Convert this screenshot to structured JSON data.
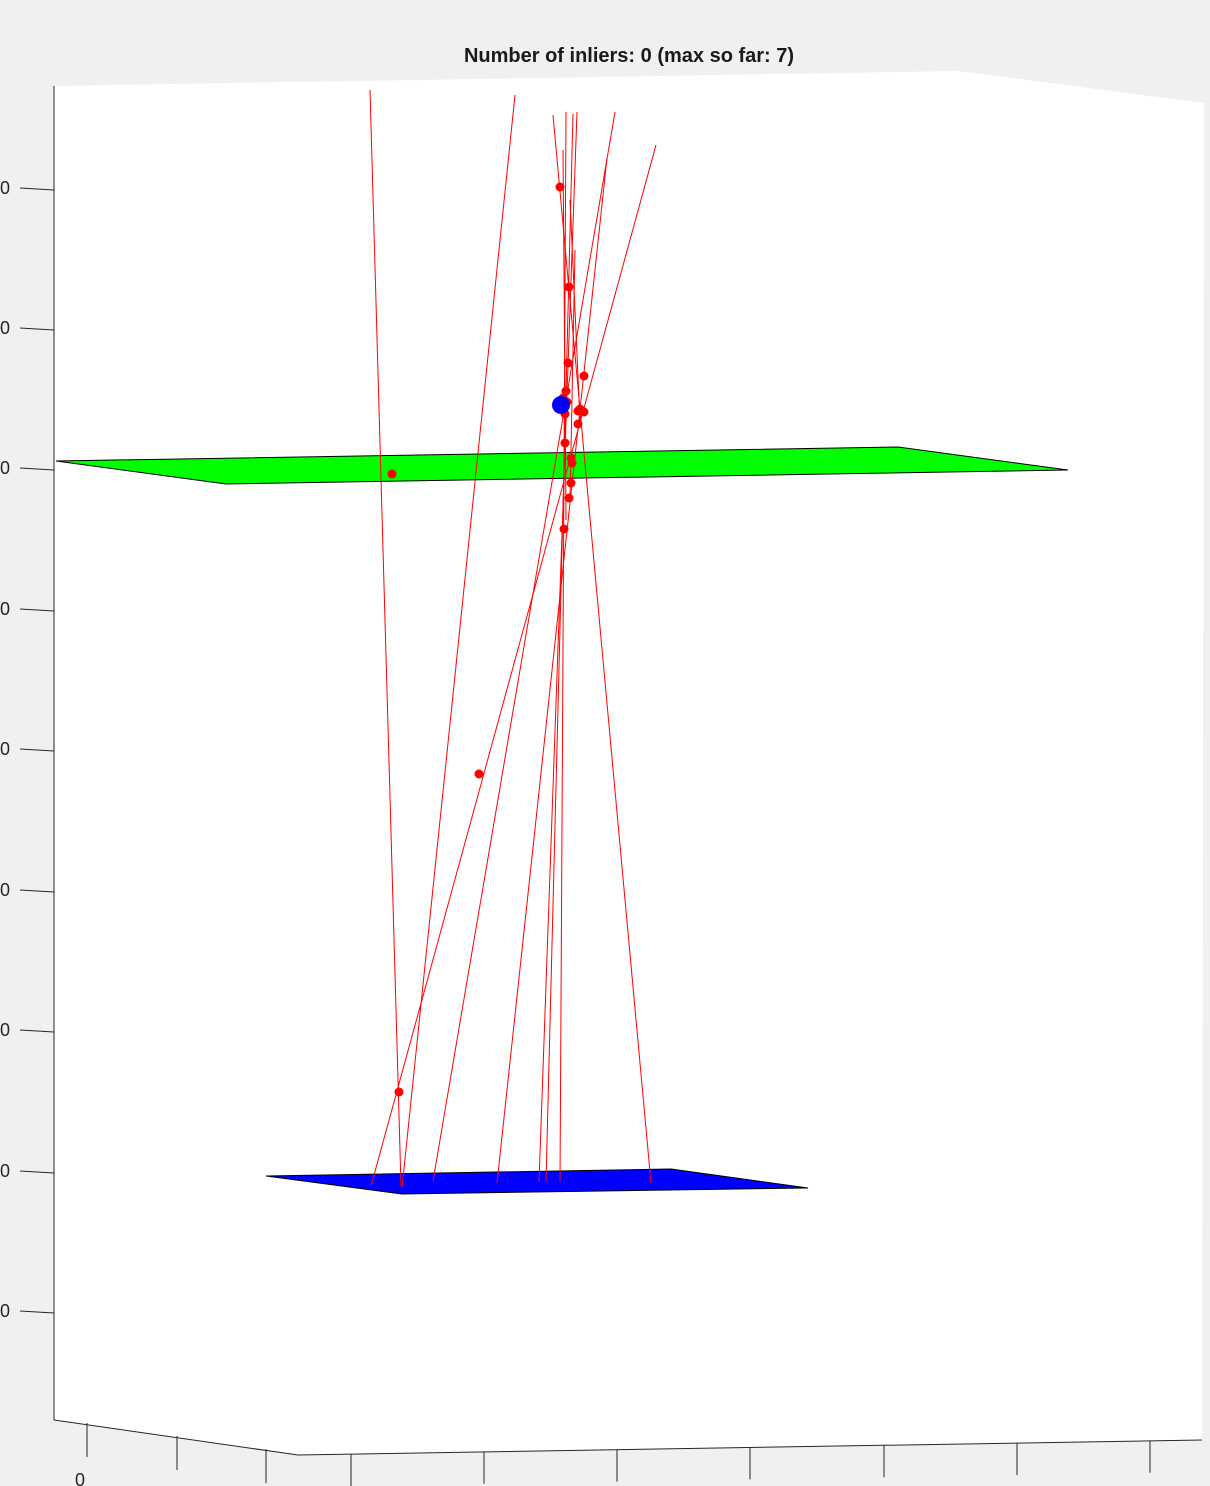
{
  "figure": {
    "background": "#f0f0f0",
    "axes_background": "#ffffff"
  },
  "chart_data": {
    "type": "scatter",
    "title": "Number of inliers: 0 (max so far: 7)",
    "projection": "3d",
    "grid": false,
    "z_tick_labels": [
      "0",
      "0",
      "0",
      "0",
      "0",
      "0",
      "0",
      "0",
      "0"
    ],
    "x_tick_labels": [
      "0"
    ],
    "planes": [
      {
        "name": "green plane",
        "color": "#00ff00"
      },
      {
        "name": "blue plane",
        "color": "#0000ff"
      }
    ],
    "ray_color": "#ff0000",
    "point_color": "#ff0000",
    "estimate_color": "#0000ff",
    "ray_count": 12,
    "point_count": 24
  }
}
